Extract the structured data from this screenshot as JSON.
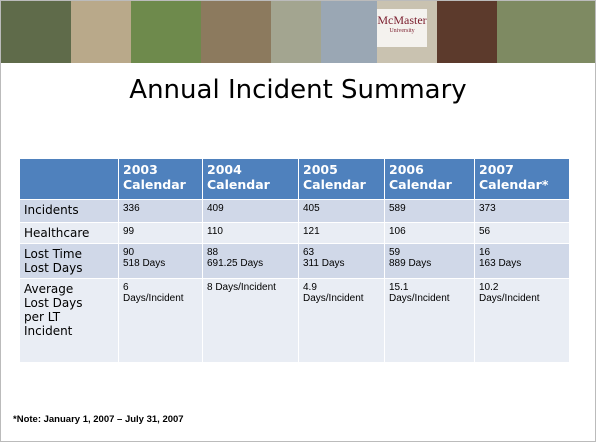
{
  "banner": {
    "logo": [
      "McMaster",
      "University"
    ]
  },
  "header": {
    "title": "Annual Incident Summary"
  },
  "table": {
    "columns": [
      "",
      "2003\nCalendar",
      "2004\nCalendar",
      "2005\nCalendar",
      "2006\nCalendar",
      "2007\nCalendar*"
    ],
    "rows": [
      [
        "Incidents",
        "336",
        "409",
        "405",
        "589",
        "373"
      ],
      [
        "Healthcare",
        "99",
        "110",
        "121",
        "106",
        "56"
      ],
      [
        "Lost Time\nLost Days",
        "90\n518 Days",
        "88\n691.25 Days",
        "63\n311 Days",
        "59\n889 Days",
        "16\n163 Days"
      ],
      [
        "Average\nLost Days\nper LT\nIncident",
        "6\nDays/Incident",
        "8 Days/Incident",
        "4.9\nDays/Incident",
        "15.1\nDays/Incident",
        "10.2\nDays/Incident"
      ]
    ]
  },
  "footnote": {
    "marker": "*",
    "text": "Note: January 1, 2007 – July 31, 2007"
  }
}
